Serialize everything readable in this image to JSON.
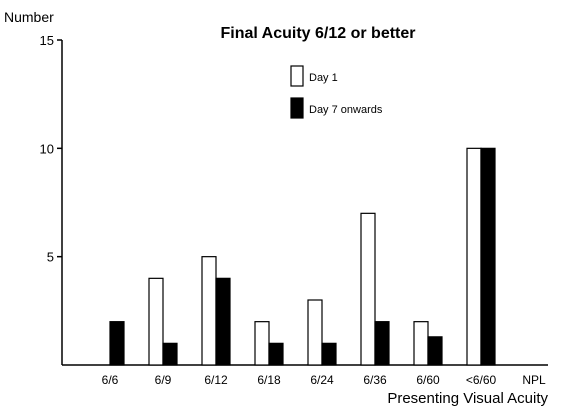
{
  "chart_data": {
    "type": "bar",
    "title": "Final Acuity 6/12 or better",
    "ylabel": "Number",
    "xlabel": "Presenting Visual Acuity",
    "categories": [
      "6/6",
      "6/9",
      "6/12",
      "6/18",
      "6/24",
      "6/36",
      "6/60",
      "<6/60",
      "NPL"
    ],
    "ylim": [
      0,
      15
    ],
    "yticks": [
      5,
      10,
      15
    ],
    "grid": false,
    "legend_position": "top-center",
    "series": [
      {
        "name": "Day 1",
        "color": "#ffffff",
        "values": [
          0,
          4,
          5,
          2,
          3,
          7,
          2,
          10,
          null
        ]
      },
      {
        "name": "Day 7 onwards",
        "color": "#000000",
        "values": [
          2,
          1,
          4,
          1,
          1,
          2,
          1.3,
          10,
          null
        ]
      }
    ]
  }
}
